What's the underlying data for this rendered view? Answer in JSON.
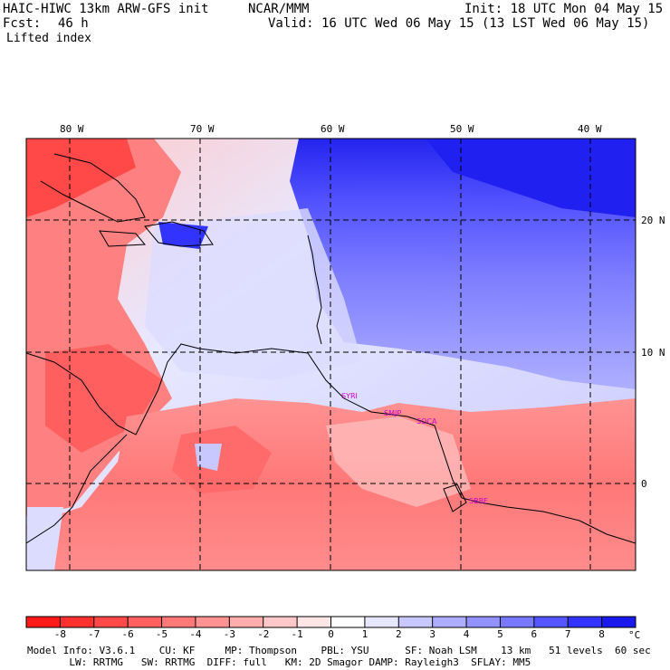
{
  "header": {
    "model": "HAIC-HIWC 13km ARW-GFS init",
    "center": "NCAR/MMM",
    "init": "Init: 18 UTC Mon 04 May 15",
    "fcst_label": "Fcst:",
    "fcst_value": "46 h",
    "valid": "Valid: 16 UTC Wed 06 May 15 (13 LST Wed 06 May 15)",
    "field": "Lifted index"
  },
  "axes": {
    "lon_labels": [
      "80 W",
      "70 W",
      "60 W",
      "50 W",
      "40 W"
    ],
    "lat_labels": [
      "20 N",
      "10 N",
      "0"
    ]
  },
  "stations": [
    "SYRI",
    "SMJP",
    "SOCA",
    "SBBE"
  ],
  "colorbar": {
    "unit": "°C",
    "labels": [
      "-8",
      "-7",
      "-6",
      "-5",
      "-4",
      "-3",
      "-2",
      "-1",
      "0",
      "1",
      "2",
      "3",
      "4",
      "5",
      "6",
      "7",
      "8"
    ],
    "colors": [
      "#ff1a1a",
      "#ff3030",
      "#ff4848",
      "#ff5f5f",
      "#ff7878",
      "#ff9292",
      "#ffadad",
      "#ffc8c8",
      "#ffe6e6",
      "#ffffff",
      "#e6e6ff",
      "#c8c8ff",
      "#adadff",
      "#9292ff",
      "#7878ff",
      "#5555ff",
      "#3333ff",
      "#1a1aee"
    ]
  },
  "model_info": {
    "line1": "Model Info: V3.6.1    CU: KF     MP: Thompson    PBL: YSU      SF: Noah LSM    13 km   51 levels  60 sec",
    "line2": "       LW: RRTMG   SW: RRTMG  DIFF: full   KM: 2D Smagor DAMP: Rayleigh3  SFLAY: MM5"
  }
}
